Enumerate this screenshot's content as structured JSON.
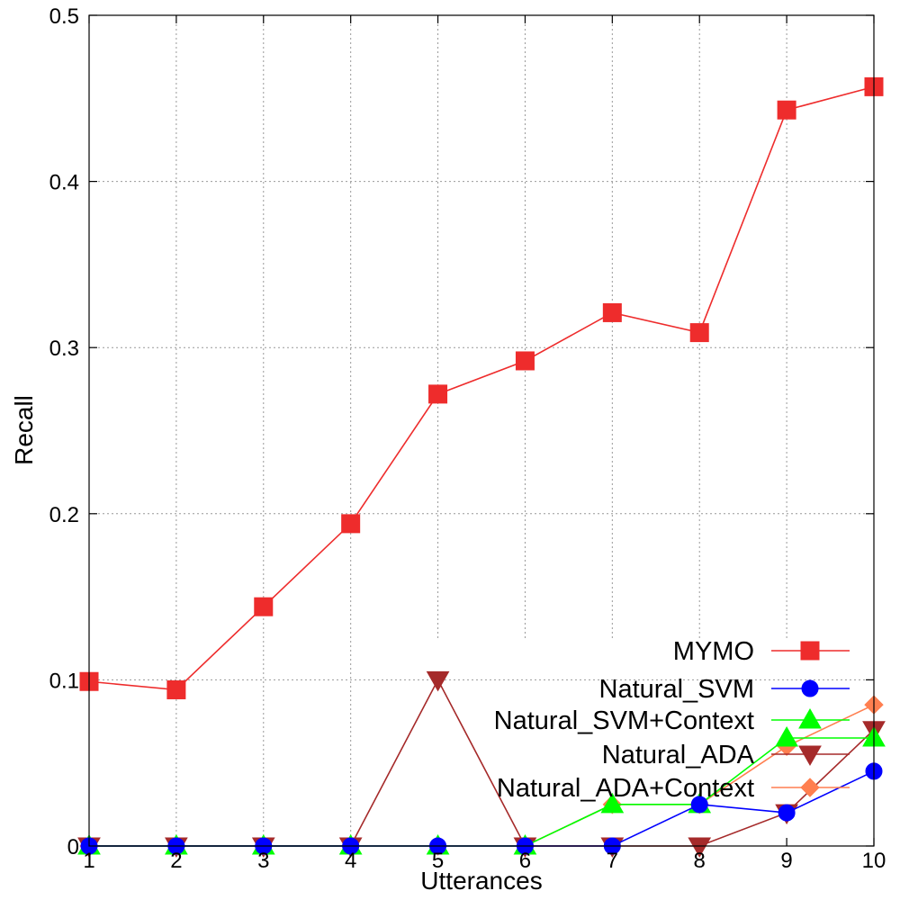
{
  "chart_data": {
    "type": "line",
    "title": "",
    "xlabel": "Utterances",
    "ylabel": "Recall",
    "x": [
      1,
      2,
      3,
      4,
      5,
      6,
      7,
      8,
      9,
      10
    ],
    "xlim": [
      1,
      10
    ],
    "ylim": [
      0,
      0.5
    ],
    "xticks": [
      "1",
      "2",
      "3",
      "4",
      "5",
      "6",
      "7",
      "8",
      "9",
      "10"
    ],
    "yticks": [
      "0",
      "0.1",
      "0.2",
      "0.3",
      "0.4",
      "0.5"
    ],
    "ytick_values": [
      0,
      0.1,
      0.2,
      0.3,
      0.4,
      0.5
    ],
    "grid": true,
    "legend_position": "bottom-right",
    "series": [
      {
        "name": "MYMO",
        "color": "#ee2c2c",
        "marker": "square",
        "values": [
          0.099,
          0.094,
          0.144,
          0.194,
          0.272,
          0.292,
          0.321,
          0.309,
          0.443,
          0.457
        ]
      },
      {
        "name": "Natural_SVM",
        "color": "#0000ff",
        "marker": "circle",
        "values": [
          0,
          0,
          0,
          0,
          0,
          0,
          0,
          0.025,
          0.02,
          0.045
        ]
      },
      {
        "name": "Natural_SVM+Context",
        "color": "#00ff00",
        "marker": "triangle-up",
        "values": [
          0,
          0,
          0,
          0,
          0,
          0,
          0.025,
          0.025,
          0.065,
          0.065
        ]
      },
      {
        "name": "Natural_ADA",
        "color": "#a52a2a",
        "marker": "triangle-down",
        "values": [
          0,
          0,
          0,
          0,
          0.1,
          0,
          0,
          0,
          0.02,
          0.07
        ]
      },
      {
        "name": "Natural_ADA+Context",
        "color": "#ff7f50",
        "marker": "diamond",
        "values": [
          0,
          0,
          0,
          0,
          0,
          0,
          0.025,
          0.025,
          0.06,
          0.085
        ]
      }
    ]
  }
}
